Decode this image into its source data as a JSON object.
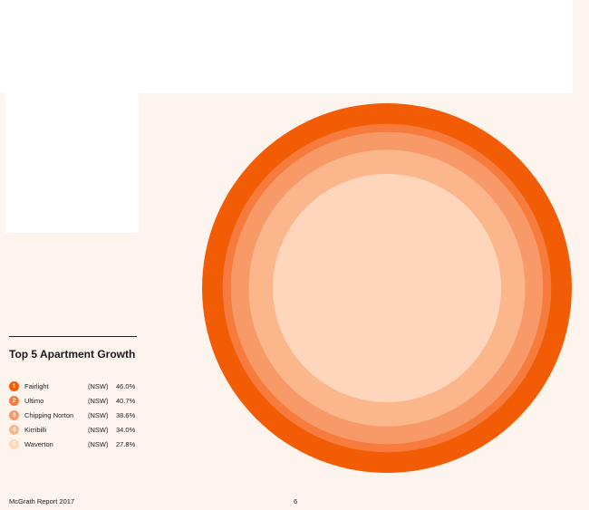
{
  "chart_data": {
    "type": "pie",
    "title": "Top 5 Apartment Growth",
    "unit": "%",
    "items": [
      {
        "rank": "1",
        "name": "Fairlight",
        "state": "(NSW)",
        "value": 46.0,
        "label": "46.0%",
        "color": "#f25c05"
      },
      {
        "rank": "2",
        "name": "Ultimo",
        "state": "(NSW)",
        "value": 40.7,
        "label": "40.7%",
        "color": "#f67b3d"
      },
      {
        "rank": "3",
        "name": "Chipping Norton",
        "state": "(NSW)",
        "value": 38.6,
        "label": "38.6%",
        "color": "#f89a68"
      },
      {
        "rank": "4",
        "name": "Kirribilli",
        "state": "(NSW)",
        "value": 34.0,
        "label": "34.0%",
        "color": "#fbb68c"
      },
      {
        "rank": "5",
        "name": "Waverton",
        "state": "(NSW)",
        "value": 27.8,
        "label": "27.8%",
        "color": "#fdd6bc"
      }
    ]
  },
  "footer": {
    "report": "McGrath Report 2017",
    "page": "6"
  }
}
